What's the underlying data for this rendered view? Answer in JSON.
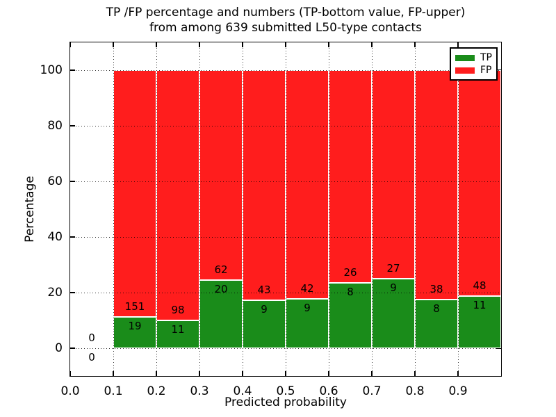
{
  "title": {
    "line1": "TP /FP percentage and numbers (TP-bottom value, FP-upper)",
    "line2": "from among 639 submitted L50-type contacts"
  },
  "axes": {
    "xlabel": "Predicted probability",
    "ylabel": "Percentage",
    "x_tick_labels": [
      "0.0",
      "0.1",
      "0.2",
      "0.3",
      "0.4",
      "0.5",
      "0.6",
      "0.7",
      "0.8",
      "0.9"
    ],
    "x_tick_values": [
      0.0,
      0.1,
      0.2,
      0.3,
      0.4,
      0.5,
      0.6,
      0.7,
      0.8,
      0.9
    ],
    "y_tick_labels": [
      "0",
      "20",
      "40",
      "60",
      "80",
      "100"
    ],
    "y_tick_values": [
      0,
      20,
      40,
      60,
      80,
      100
    ]
  },
  "legend": {
    "position": "upper-right",
    "items": [
      {
        "label": "TP",
        "color": "#1a8c1a"
      },
      {
        "label": "FP",
        "color": "#ff1d1d"
      }
    ]
  },
  "chart_data": {
    "type": "bar",
    "stacked": true,
    "title": "TP /FP percentage and numbers (TP-bottom value, FP-upper) from among 639 submitted L50-type contacts",
    "xlabel": "Predicted probability",
    "ylabel": "Percentage",
    "xlim": [
      0.0,
      1.0
    ],
    "ylim": [
      -10,
      110
    ],
    "grid": true,
    "total_contacts": 639,
    "tp_color": "#1a8c1a",
    "fp_color": "#ff1d1d",
    "bins": [
      {
        "x_start": 0.0,
        "x_end": 0.1,
        "tp": 0,
        "fp": 0,
        "tp_pct": 0
      },
      {
        "x_start": 0.1,
        "x_end": 0.2,
        "tp": 19,
        "fp": 151,
        "tp_pct": 11.18
      },
      {
        "x_start": 0.2,
        "x_end": 0.3,
        "tp": 11,
        "fp": 98,
        "tp_pct": 10.09
      },
      {
        "x_start": 0.3,
        "x_end": 0.4,
        "tp": 20,
        "fp": 62,
        "tp_pct": 24.39
      },
      {
        "x_start": 0.4,
        "x_end": 0.5,
        "tp": 9,
        "fp": 43,
        "tp_pct": 17.31
      },
      {
        "x_start": 0.5,
        "x_end": 0.6,
        "tp": 9,
        "fp": 42,
        "tp_pct": 17.65
      },
      {
        "x_start": 0.6,
        "x_end": 0.7,
        "tp": 8,
        "fp": 26,
        "tp_pct": 23.53
      },
      {
        "x_start": 0.7,
        "x_end": 0.8,
        "tp": 9,
        "fp": 27,
        "tp_pct": 25.0
      },
      {
        "x_start": 0.8,
        "x_end": 0.9,
        "tp": 8,
        "fp": 38,
        "tp_pct": 17.39
      },
      {
        "x_start": 0.9,
        "x_end": 1.0,
        "tp": 11,
        "fp": 48,
        "tp_pct": 18.64
      }
    ]
  }
}
